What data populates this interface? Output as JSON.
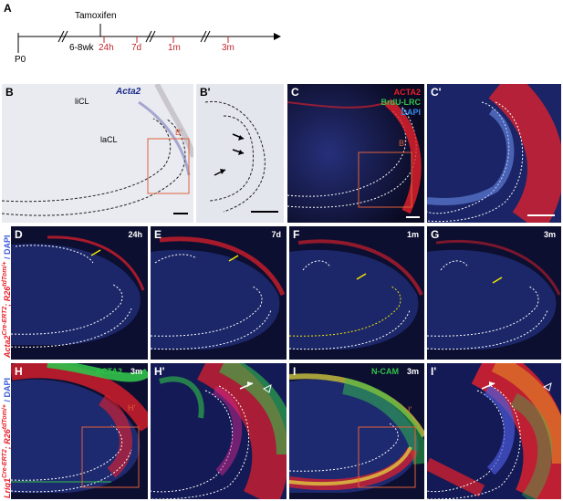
{
  "panel_A": {
    "label": "A",
    "treatment": "Tamoxifen",
    "start": "P0",
    "age": "6-8wk",
    "timepoints": [
      "24h",
      "7d",
      "1m",
      "3m"
    ]
  },
  "panel_B": {
    "label": "B",
    "gene": "Acta2",
    "annotation_1": "liCL",
    "annotation_2": "laCL",
    "inset": "B'"
  },
  "panel_B2": {
    "label": "B'"
  },
  "panel_C": {
    "label": "C",
    "stain_1": "ACTA2",
    "stain_2": "BrdU-LRC",
    "stain_3": "DAPI",
    "inset": "B'"
  },
  "panel_C2": {
    "label": "C'"
  },
  "panel_D": {
    "label": "D",
    "time": "24h"
  },
  "panel_E": {
    "label": "E",
    "time": "7d"
  },
  "panel_F": {
    "label": "F",
    "time": "1m"
  },
  "panel_G": {
    "label": "G",
    "time": "3m"
  },
  "panel_H": {
    "label": "H",
    "stain": "ACTA2",
    "time": "3m",
    "inset": "H'"
  },
  "panel_H2": {
    "label": "H'"
  },
  "panel_I": {
    "label": "I",
    "stain": "N-CAM",
    "time": "3m",
    "inset": "I'"
  },
  "panel_I2": {
    "label": "I'"
  },
  "row_labels": {
    "row2_gene": "Acta2",
    "row2_sup1": "Cre-ERT2",
    "row2_mid": "; R26",
    "row2_sup2": "tdTom/+",
    "row2_tail": " / DAPI",
    "row3_gene": "Lrig1",
    "row3_sup1": "Cre-ERT2",
    "row3_mid": "; R26",
    "row3_sup2": "tdTom/+",
    "row3_tail": " / DAPI"
  },
  "colors": {
    "red": "#e8202a",
    "green": "#31c24a",
    "blue": "#3a5ad8",
    "timeline_red": "#c0262c",
    "orange_box": "#e0603a"
  }
}
